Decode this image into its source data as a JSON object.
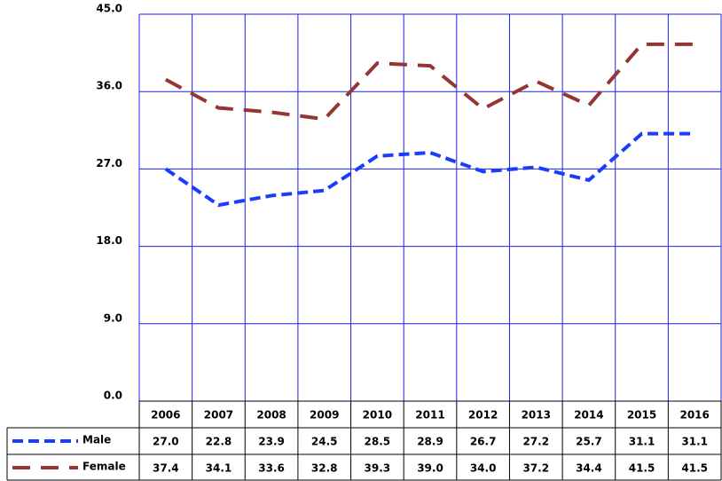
{
  "chart_data": {
    "type": "line",
    "categories": [
      "2006",
      "2007",
      "2008",
      "2009",
      "2010",
      "2011",
      "2012",
      "2013",
      "2014",
      "2015",
      "2016"
    ],
    "series": [
      {
        "name": "Male",
        "color": "#1a3cff",
        "values": [
          27.0,
          22.8,
          23.9,
          24.5,
          28.5,
          28.9,
          26.7,
          27.2,
          25.7,
          31.1,
          31.1
        ],
        "value_labels": [
          "27.0",
          "22.8",
          "23.9",
          "24.5",
          "28.5",
          "28.9",
          "26.7",
          "27.2",
          "25.7",
          "31.1",
          "31.1"
        ]
      },
      {
        "name": "Female",
        "color": "#943634",
        "values": [
          37.4,
          34.1,
          33.6,
          32.8,
          39.3,
          39.0,
          34.0,
          37.2,
          34.4,
          41.5,
          41.5
        ],
        "value_labels": [
          "37.4",
          "34.1",
          "33.6",
          "32.8",
          "39.3",
          "39.0",
          "34.0",
          "37.2",
          "34.4",
          "41.5",
          "41.5"
        ]
      }
    ],
    "ylim": [
      0,
      45
    ],
    "yticks": [
      {
        "value": 0,
        "label": "0.0"
      },
      {
        "value": 9,
        "label": "9.0"
      },
      {
        "value": 18,
        "label": "18.0"
      },
      {
        "value": 27,
        "label": "27.0"
      },
      {
        "value": 36,
        "label": "36.0"
      },
      {
        "value": 45,
        "label": "45.0"
      }
    ],
    "grid": true
  }
}
